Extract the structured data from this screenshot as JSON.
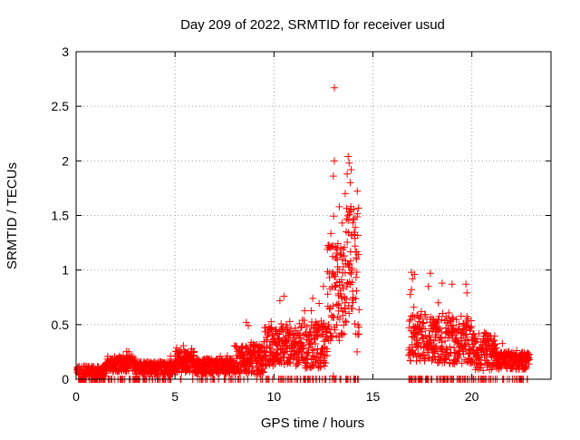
{
  "chart_data": {
    "type": "scatter",
    "title": "Day 209 of 2022, SRMTID for receiver usud",
    "xlabel": "GPS time / hours",
    "ylabel": "SRMTID / TECUs",
    "xlim": [
      0,
      24
    ],
    "ylim": [
      0,
      3
    ],
    "x_ticks": [
      0,
      5,
      10,
      15,
      20
    ],
    "x_tick_labels": [
      "0",
      "5",
      "10",
      "15",
      "20"
    ],
    "y_ticks": [
      0,
      0.5,
      1,
      1.5,
      2,
      2.5,
      3
    ],
    "y_tick_labels": [
      "0",
      "0.5",
      "1",
      "1.5",
      "2",
      "2.5",
      "3"
    ],
    "grid": true,
    "marker": "+",
    "series": [
      {
        "name": "SRMTID",
        "color": "#ff0000",
        "segments": [
          {
            "x_start": 0.05,
            "x_end": 1.5,
            "y_base": 0.07,
            "y_amp": 0.05,
            "zero_fraction": 0.25
          },
          {
            "x_start": 1.5,
            "x_end": 3.0,
            "y_base": 0.14,
            "y_amp": 0.07,
            "zero_fraction": 0.1
          },
          {
            "x_start": 3.0,
            "x_end": 5.0,
            "y_base": 0.1,
            "y_amp": 0.06,
            "zero_fraction": 0.12
          },
          {
            "x_start": 5.0,
            "x_end": 6.0,
            "y_base": 0.16,
            "y_amp": 0.1,
            "zero_fraction": 0.05
          },
          {
            "x_start": 6.0,
            "x_end": 8.0,
            "y_base": 0.12,
            "y_amp": 0.07,
            "zero_fraction": 0.08
          },
          {
            "x_start": 8.0,
            "x_end": 9.5,
            "y_base": 0.18,
            "y_amp": 0.14,
            "zero_fraction": 0.1
          },
          {
            "x_start": 9.5,
            "x_end": 11.5,
            "y_base": 0.3,
            "y_amp": 0.18,
            "zero_fraction": 0.08
          },
          {
            "x_start": 11.5,
            "x_end": 12.7,
            "y_base": 0.32,
            "y_amp": 0.22,
            "zero_fraction": 0.12
          },
          {
            "x_start": 12.7,
            "x_end": 13.6,
            "y_base": 0.8,
            "y_amp": 0.45,
            "zero_fraction": 0.08
          },
          {
            "x_start": 13.6,
            "x_end": 14.3,
            "y_base": 1.0,
            "y_amp": 0.6,
            "zero_fraction": 0.1
          },
          {
            "x_start": 16.8,
            "x_end": 18.0,
            "y_base": 0.38,
            "y_amp": 0.22,
            "zero_fraction": 0.18
          },
          {
            "x_start": 18.0,
            "x_end": 20.0,
            "y_base": 0.36,
            "y_amp": 0.22,
            "zero_fraction": 0.15
          },
          {
            "x_start": 20.0,
            "x_end": 21.2,
            "y_base": 0.25,
            "y_amp": 0.17,
            "zero_fraction": 0.15
          },
          {
            "x_start": 21.2,
            "x_end": 22.9,
            "y_base": 0.17,
            "y_amp": 0.08,
            "zero_fraction": 0.12
          }
        ],
        "notable_points": [
          {
            "x": 13.05,
            "y": 2.67
          },
          {
            "x": 13.05,
            "y": 2.0
          },
          {
            "x": 13.0,
            "y": 1.86
          },
          {
            "x": 13.75,
            "y": 2.04
          },
          {
            "x": 13.8,
            "y": 1.98
          },
          {
            "x": 13.9,
            "y": 1.92
          },
          {
            "x": 13.7,
            "y": 1.88
          },
          {
            "x": 13.85,
            "y": 1.8
          },
          {
            "x": 13.6,
            "y": 1.7
          },
          {
            "x": 13.3,
            "y": 1.58
          },
          {
            "x": 13.9,
            "y": 1.55
          },
          {
            "x": 13.45,
            "y": 1.43
          },
          {
            "x": 13.65,
            "y": 1.35
          },
          {
            "x": 14.1,
            "y": 1.22
          },
          {
            "x": 13.2,
            "y": 1.2
          },
          {
            "x": 12.5,
            "y": 0.85
          },
          {
            "x": 10.5,
            "y": 0.76
          },
          {
            "x": 10.3,
            "y": 0.72
          },
          {
            "x": 8.6,
            "y": 0.52
          },
          {
            "x": 8.7,
            "y": 0.49
          },
          {
            "x": 16.95,
            "y": 0.98
          },
          {
            "x": 17.1,
            "y": 0.96
          },
          {
            "x": 17.0,
            "y": 0.92
          },
          {
            "x": 17.9,
            "y": 0.97
          },
          {
            "x": 18.5,
            "y": 0.88
          },
          {
            "x": 19.0,
            "y": 0.87
          },
          {
            "x": 19.7,
            "y": 0.87
          },
          {
            "x": 19.75,
            "y": 0.79
          },
          {
            "x": 17.8,
            "y": 0.85
          },
          {
            "x": 18.3,
            "y": 0.7
          },
          {
            "x": 13.0,
            "y": 0.03
          },
          {
            "x": 14.2,
            "y": 0.25
          }
        ]
      }
    ]
  }
}
